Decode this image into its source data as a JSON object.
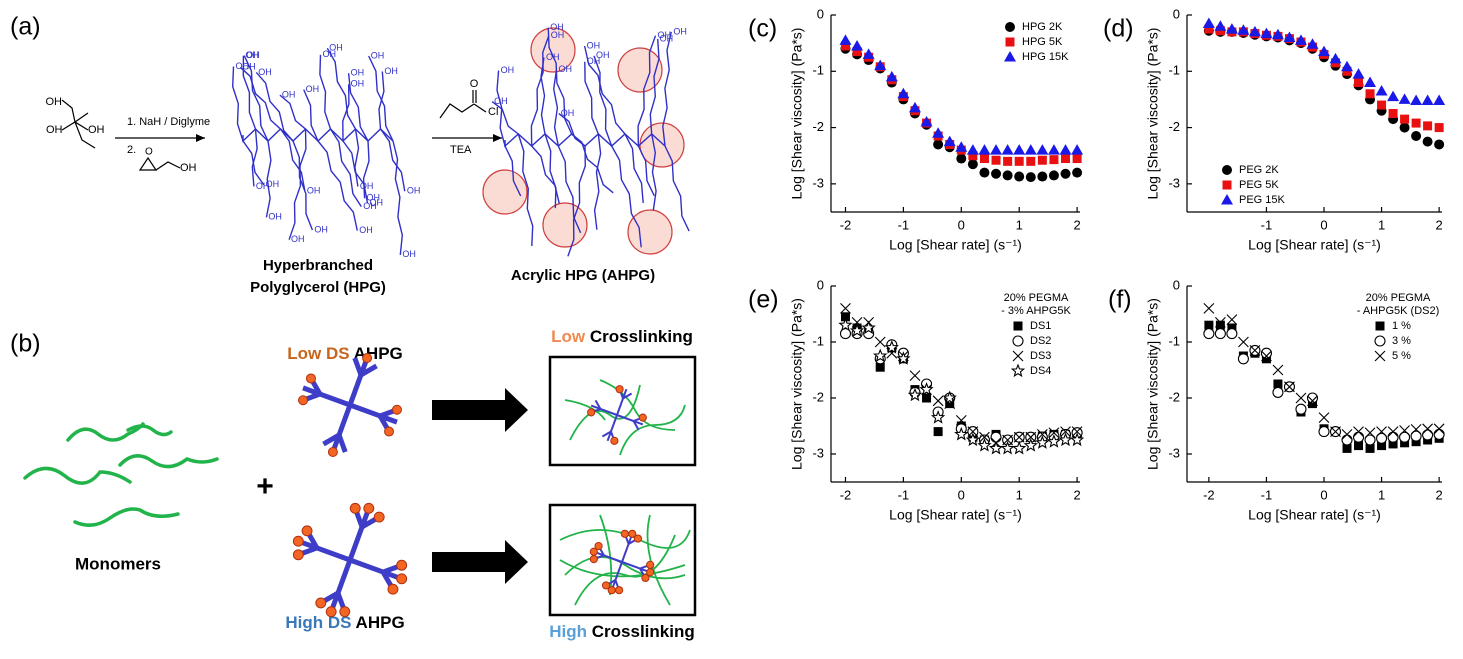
{
  "panel_a": {
    "label": "(a)",
    "reagent_step1": "1. NaH / Diglyme",
    "reagent_step2": "2.",
    "reagent_tea": "TEA",
    "oh": "OH",
    "o": "O",
    "cl": "Cl",
    "hpg_name": [
      "Hyperbranched",
      "Polyglycerol (HPG)"
    ],
    "ahpg_name": "Acrylic HPG (AHPG)"
  },
  "panel_b": {
    "label": "(b)",
    "low_ds": [
      "Low",
      "DS",
      "AHPG"
    ],
    "high_ds": [
      "High",
      "DS",
      "AHPG"
    ],
    "low_cross": [
      "Low",
      "Crosslinking"
    ],
    "high_cross": [
      "High",
      "Crosslinking"
    ],
    "monomers": "Monomers",
    "plus": "+"
  },
  "chart_data": [
    {
      "type": "scatter",
      "label": "(c)",
      "xlabel": "Log [Shear rate] (s⁻¹)",
      "ylabel": "Log [Shear viscosity] (Pa*s)",
      "x": [
        -2,
        -1.8,
        -1.6,
        -1.4,
        -1.2,
        -1,
        -0.8,
        -0.6,
        -0.4,
        -0.2,
        0,
        0.2,
        0.4,
        0.6,
        0.8,
        1,
        1.2,
        1.4,
        1.6,
        1.8,
        2
      ],
      "xlim": [
        -2.25,
        2.05
      ],
      "xticks": [
        -2,
        -1,
        0,
        1,
        2
      ],
      "ylim": [
        -3.5,
        0
      ],
      "yticks": [
        0,
        -1,
        -2,
        -3
      ],
      "legend": "upper right",
      "series": [
        {
          "name": "HPG 2K",
          "color": "#000000",
          "marker": "circle",
          "values": [
            -0.6,
            -0.7,
            -0.8,
            -0.95,
            -1.2,
            -1.5,
            -1.75,
            -1.95,
            -2.3,
            -2.35,
            -2.55,
            -2.65,
            -2.8,
            -2.82,
            -2.85,
            -2.87,
            -2.88,
            -2.87,
            -2.85,
            -2.82,
            -2.8
          ]
        },
        {
          "name": "HPG 5K",
          "color": "#e81010",
          "marker": "square",
          "values": [
            -0.55,
            -0.65,
            -0.75,
            -0.92,
            -1.15,
            -1.45,
            -1.7,
            -1.92,
            -2.15,
            -2.3,
            -2.4,
            -2.5,
            -2.55,
            -2.58,
            -2.6,
            -2.6,
            -2.6,
            -2.58,
            -2.57,
            -2.55,
            -2.55
          ]
        },
        {
          "name": "HPG 15K",
          "color": "#1a1ae8",
          "marker": "triangle",
          "values": [
            -0.45,
            -0.55,
            -0.7,
            -0.9,
            -1.1,
            -1.4,
            -1.65,
            -1.9,
            -2.1,
            -2.25,
            -2.35,
            -2.4,
            -2.4,
            -2.4,
            -2.4,
            -2.4,
            -2.4,
            -2.4,
            -2.4,
            -2.4,
            -2.4
          ]
        }
      ]
    },
    {
      "type": "scatter",
      "label": "(d)",
      "xlabel": "Log [Shear rate] (s⁻¹)",
      "ylabel": "Log [Shear viscosity] (Pa*s)",
      "x": [
        -2,
        -1.8,
        -1.6,
        -1.4,
        -1.2,
        -1,
        -0.8,
        -0.6,
        -0.4,
        -0.2,
        0,
        0.2,
        0.4,
        0.6,
        0.8,
        1,
        1.2,
        1.4,
        1.6,
        1.8,
        2
      ],
      "xlim": [
        -2.38,
        2.05
      ],
      "xticks": [
        -1,
        0,
        1,
        2
      ],
      "ylim": [
        -3.5,
        0
      ],
      "yticks": [
        0,
        -1,
        -2,
        -3
      ],
      "legend": "lower left",
      "series": [
        {
          "name": "PEG 2K",
          "color": "#000000",
          "marker": "circle",
          "values": [
            -0.28,
            -0.3,
            -0.3,
            -0.32,
            -0.35,
            -0.38,
            -0.4,
            -0.45,
            -0.5,
            -0.6,
            -0.75,
            -0.9,
            -1.05,
            -1.25,
            -1.5,
            -1.7,
            -1.85,
            -2.0,
            -2.15,
            -2.25,
            -2.3
          ]
        },
        {
          "name": "PEG 5K",
          "color": "#e81010",
          "marker": "square",
          "values": [
            -0.25,
            -0.28,
            -0.3,
            -0.3,
            -0.33,
            -0.36,
            -0.38,
            -0.42,
            -0.48,
            -0.57,
            -0.7,
            -0.85,
            -1.0,
            -1.2,
            -1.4,
            -1.6,
            -1.75,
            -1.85,
            -1.92,
            -1.97,
            -2.0
          ]
        },
        {
          "name": "PEG 15K",
          "color": "#1a1ae8",
          "marker": "triangle",
          "values": [
            -0.15,
            -0.2,
            -0.25,
            -0.27,
            -0.3,
            -0.33,
            -0.35,
            -0.4,
            -0.45,
            -0.52,
            -0.65,
            -0.78,
            -0.92,
            -1.05,
            -1.2,
            -1.35,
            -1.45,
            -1.5,
            -1.52,
            -1.52,
            -1.52
          ]
        }
      ]
    },
    {
      "type": "scatter",
      "label": "(e)",
      "xlabel": "Log [Shear rate] (s⁻¹)",
      "ylabel": "Log [Shear viscosity] (Pa*s)",
      "x": [
        -2,
        -1.8,
        -1.6,
        -1.4,
        -1.2,
        -1,
        -0.8,
        -0.6,
        -0.4,
        -0.2,
        0,
        0.2,
        0.4,
        0.6,
        0.8,
        1,
        1.2,
        1.4,
        1.6,
        1.8,
        2
      ],
      "xlim": [
        -2.25,
        2.05
      ],
      "xticks": [
        -2,
        -1,
        0,
        1,
        2
      ],
      "ylim": [
        -3.5,
        0
      ],
      "yticks": [
        0,
        -1,
        -2,
        -3
      ],
      "legend": "upper right",
      "legend_title": [
        "20% PEGMA",
        "- 3% AHPG5K"
      ],
      "series": [
        {
          "name": "DS1",
          "color": "#000000",
          "marker": "square",
          "values": [
            -0.55,
            -0.75,
            -0.8,
            -1.45,
            -1.1,
            -1.3,
            -1.85,
            -2.0,
            -2.6,
            -2.1,
            -2.5,
            -2.7,
            -2.75,
            -2.65,
            -2.75,
            -2.7,
            -2.7,
            -2.68,
            -2.65,
            -2.65,
            -2.65
          ]
        },
        {
          "name": "DS2",
          "color": "#000000",
          "marker": "open-circle",
          "values": [
            -0.85,
            -0.85,
            -0.85,
            -1.3,
            -1.05,
            -1.2,
            -1.9,
            -1.75,
            -2.25,
            -2.0,
            -2.55,
            -2.6,
            -2.75,
            -2.7,
            -2.75,
            -2.7,
            -2.7,
            -2.7,
            -2.68,
            -2.65,
            -2.62
          ]
        },
        {
          "name": "DS3",
          "color": "#000000",
          "marker": "cross",
          "values": [
            -0.4,
            -0.65,
            -0.65,
            -1.0,
            -1.2,
            -1.25,
            -1.6,
            -1.85,
            -2.05,
            -2.1,
            -2.4,
            -2.6,
            -2.7,
            -2.8,
            -2.75,
            -2.7,
            -2.7,
            -2.65,
            -2.62,
            -2.6,
            -2.6
          ]
        },
        {
          "name": "DS4",
          "color": "#000000",
          "marker": "star",
          "values": [
            -0.7,
            -0.8,
            -0.75,
            -1.25,
            -1.1,
            -1.3,
            -1.95,
            -1.85,
            -2.35,
            -2.0,
            -2.65,
            -2.75,
            -2.85,
            -2.9,
            -2.9,
            -2.9,
            -2.85,
            -2.8,
            -2.78,
            -2.75,
            -2.75
          ]
        }
      ]
    },
    {
      "type": "scatter",
      "label": "(f)",
      "xlabel": "Log [Shear rate] (s⁻¹)",
      "ylabel": "Log [Shear viscosity] (Pa*s)",
      "x": [
        -2,
        -1.8,
        -1.6,
        -1.4,
        -1.2,
        -1,
        -0.8,
        -0.6,
        -0.4,
        -0.2,
        0,
        0.2,
        0.4,
        0.6,
        0.8,
        1,
        1.2,
        1.4,
        1.6,
        1.8,
        2
      ],
      "xlim": [
        -2.38,
        2.05
      ],
      "xticks": [
        -2,
        -1,
        0,
        1,
        2
      ],
      "ylim": [
        -3.5,
        0
      ],
      "yticks": [
        0,
        -1,
        -2,
        -3
      ],
      "legend": "upper right",
      "legend_title": [
        "20% PEGMA",
        "- AHPG5K (DS2)"
      ],
      "series": [
        {
          "name": "1 %",
          "color": "#000000",
          "marker": "square",
          "values": [
            -0.7,
            -0.7,
            -0.75,
            -1.25,
            -1.2,
            -1.3,
            -1.75,
            -1.8,
            -2.25,
            -2.1,
            -2.55,
            -2.6,
            -2.9,
            -2.85,
            -2.9,
            -2.85,
            -2.82,
            -2.8,
            -2.78,
            -2.75,
            -2.72
          ]
        },
        {
          "name": "3 %",
          "color": "#000000",
          "marker": "open-circle",
          "values": [
            -0.85,
            -0.85,
            -0.85,
            -1.3,
            -1.15,
            -1.2,
            -1.9,
            -1.8,
            -2.2,
            -2.0,
            -2.6,
            -2.6,
            -2.75,
            -2.7,
            -2.75,
            -2.72,
            -2.7,
            -2.7,
            -2.68,
            -2.66,
            -2.65
          ]
        },
        {
          "name": "5 %",
          "color": "#000000",
          "marker": "cross",
          "values": [
            -0.4,
            -0.65,
            -0.6,
            -1.0,
            -1.15,
            -1.25,
            -1.5,
            -1.8,
            -2.0,
            -2.05,
            -2.35,
            -2.6,
            -2.65,
            -2.6,
            -2.62,
            -2.6,
            -2.6,
            -2.58,
            -2.56,
            -2.55,
            -2.55
          ]
        }
      ]
    }
  ]
}
